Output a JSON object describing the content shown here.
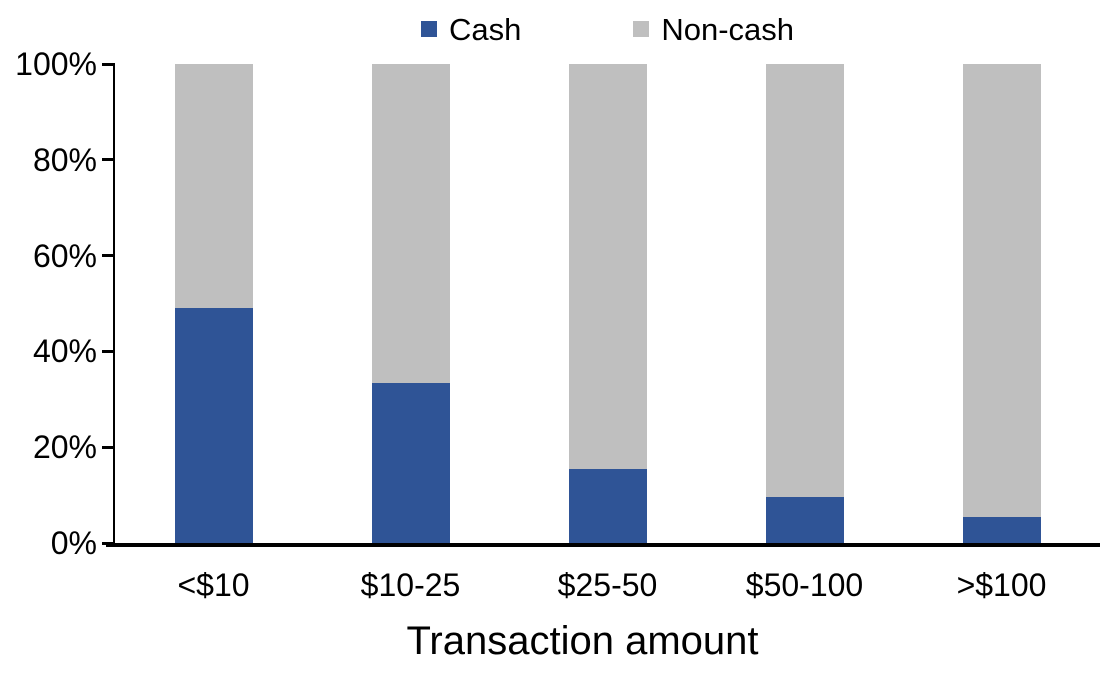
{
  "chart_data": {
    "type": "bar",
    "subtype": "stacked-100-percent",
    "title": "",
    "xlabel": "Transaction amount",
    "ylabel": "",
    "categories": [
      "<$10",
      "$10-25",
      "$25-50",
      "$50-100",
      ">$100"
    ],
    "series": [
      {
        "name": "Cash",
        "color": "#2F5496",
        "values": [
          49,
          33.5,
          15.5,
          9.5,
          5.5
        ]
      },
      {
        "name": "Non-cash",
        "color": "#BFBFBF",
        "values": [
          51,
          66.5,
          84.5,
          90.5,
          94.5
        ]
      }
    ],
    "ylim": [
      0,
      100
    ],
    "ytick_values": [
      0,
      20,
      40,
      60,
      80,
      100
    ],
    "yticks": [
      "0%",
      "20%",
      "40%",
      "60%",
      "80%",
      "100%"
    ],
    "legend_position": "top",
    "grid": false,
    "axis_color": "#000000",
    "background_color": "#FFFFFF"
  }
}
